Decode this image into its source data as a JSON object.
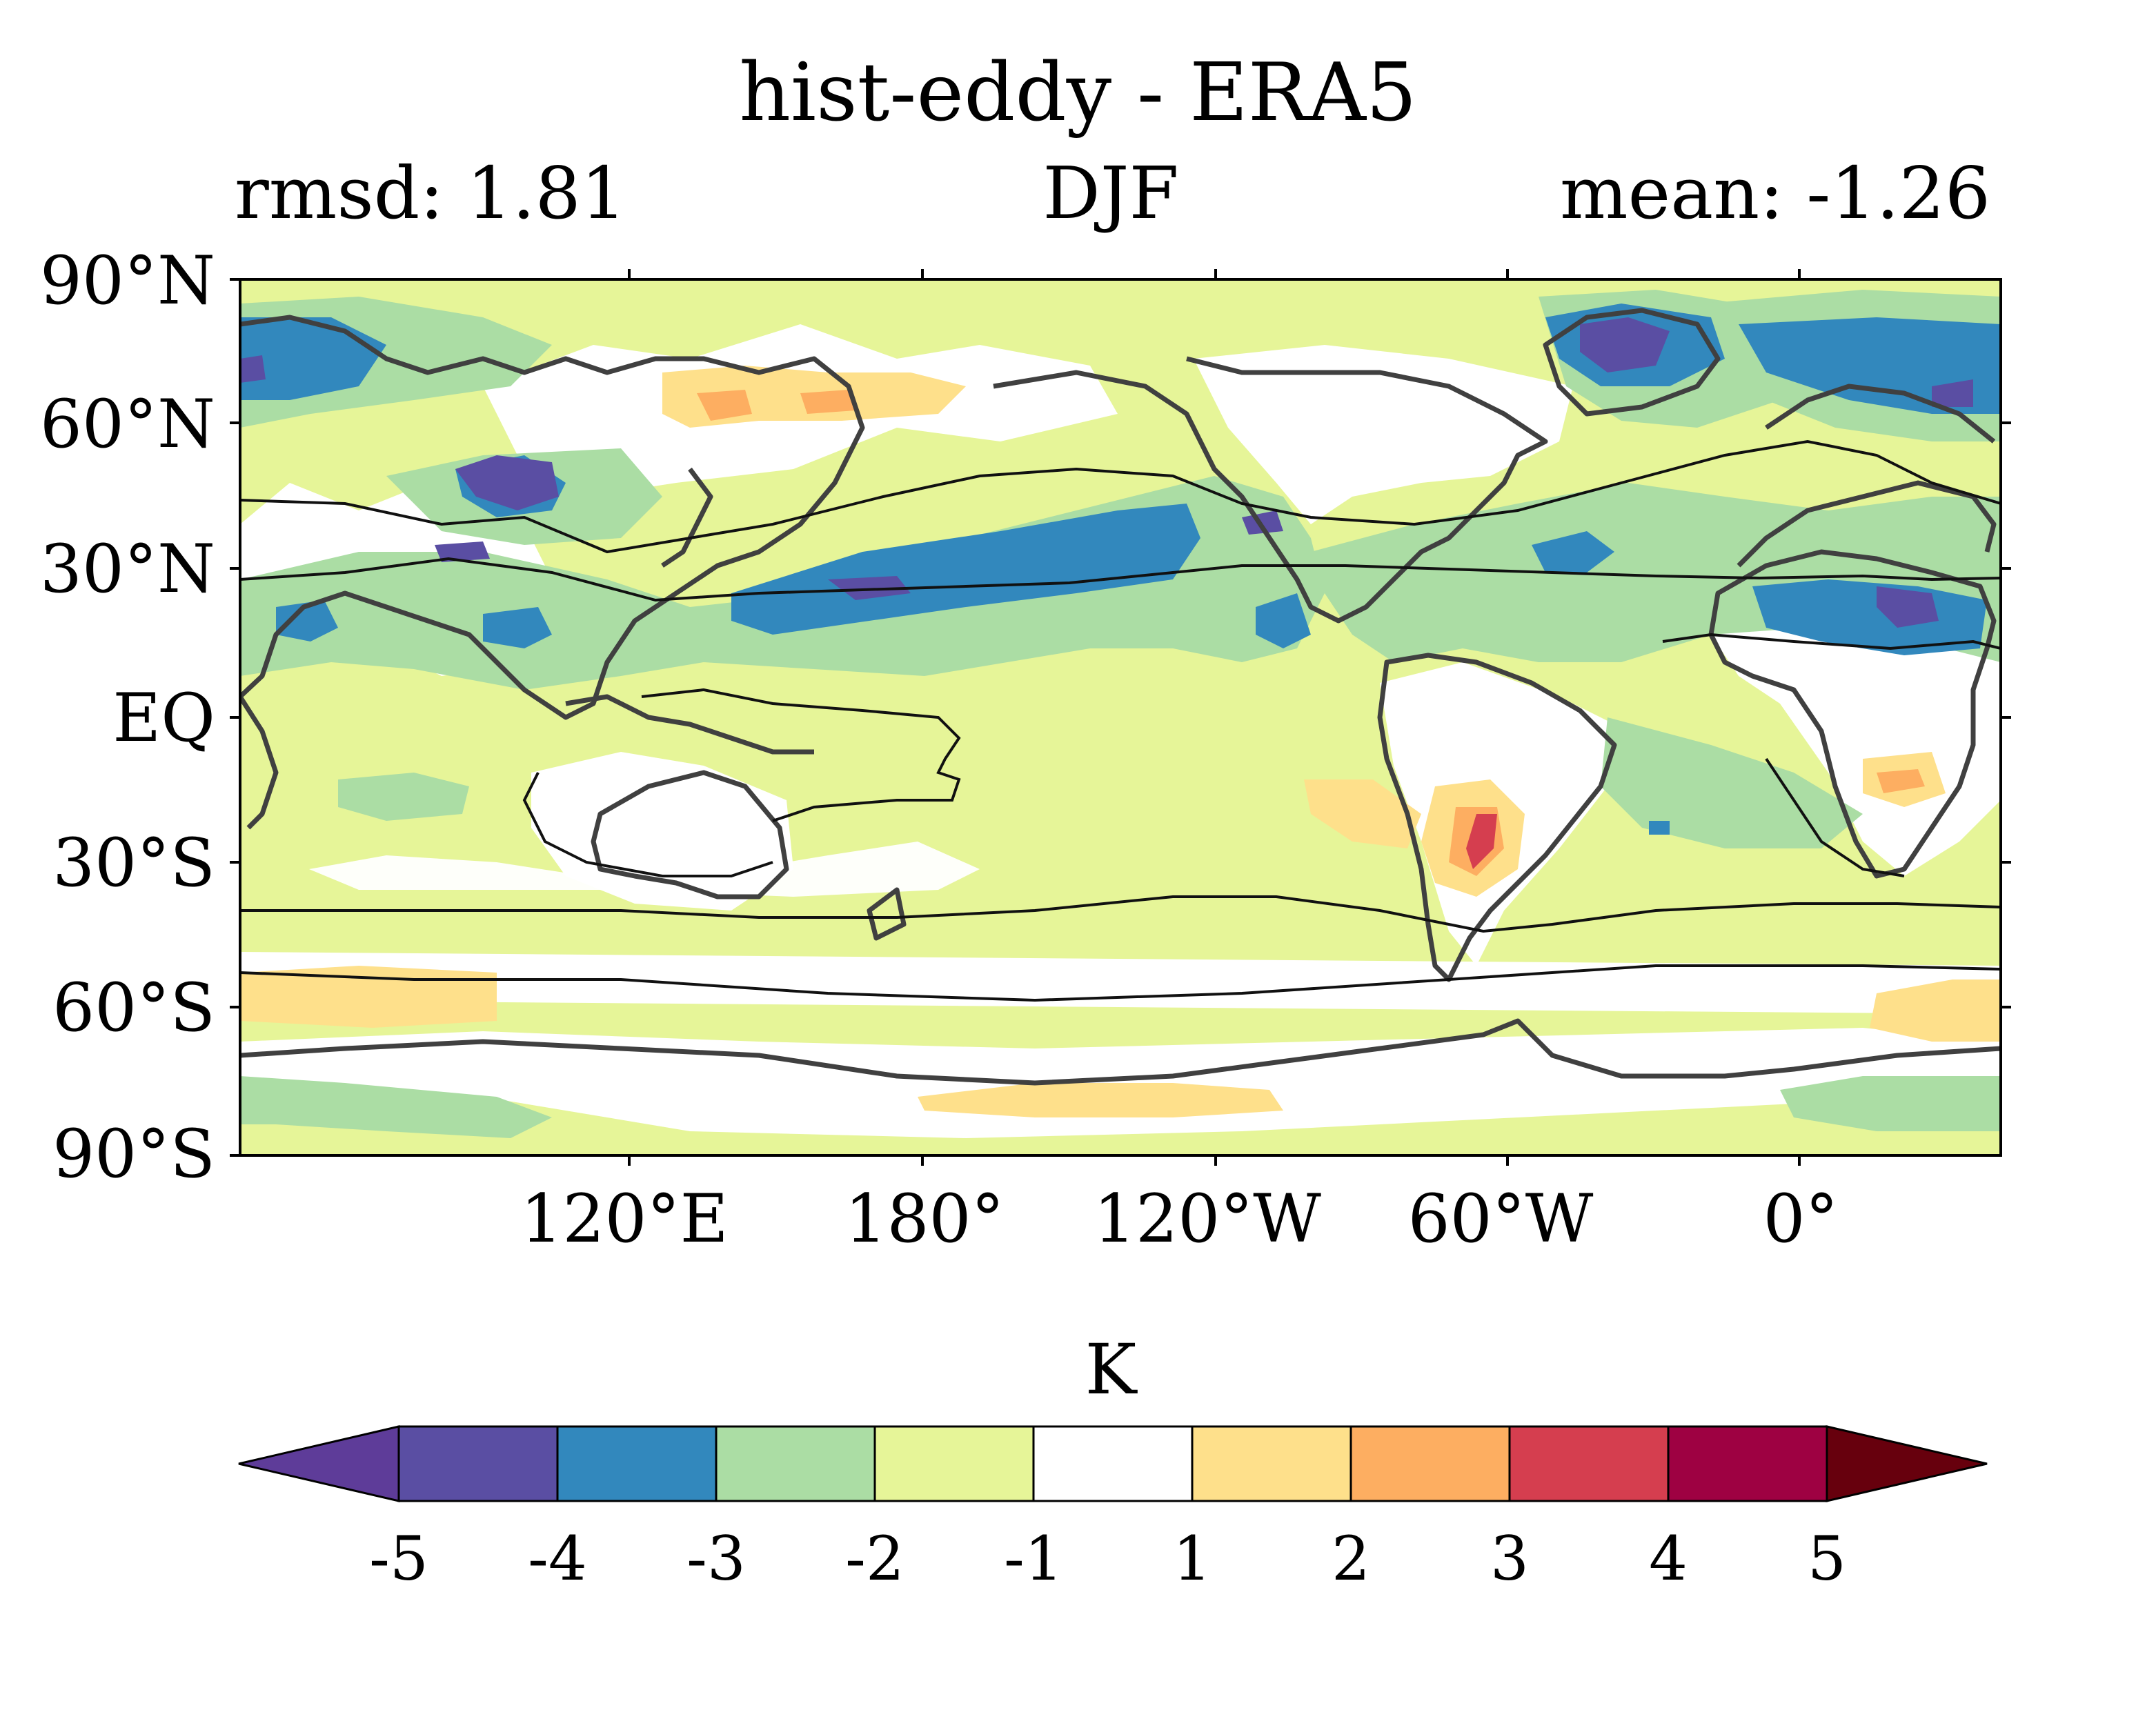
{
  "header": {
    "title": "hist-eddy - ERA5",
    "left_label": "rmsd: 1.81",
    "center_label": "DJF",
    "right_label": "mean: -1.26"
  },
  "map": {
    "lat_labels": [
      "90°N",
      "60°N",
      "30°N",
      "EQ",
      "30°S",
      "60°S",
      "90°S"
    ],
    "lon_labels": [
      "120°E",
      "180°",
      "120°W",
      "60°W",
      "0°"
    ],
    "region_labels": []
  },
  "colorbar": {
    "unit": "K",
    "levels": [
      "-5",
      "-4",
      "-3",
      "-2",
      "-1",
      "1",
      "2",
      "3",
      "4",
      "5"
    ],
    "colors": [
      "#5e3c99",
      "#5a4ea3",
      "#3288bd",
      "#abdda4",
      "#e6f598",
      "#ffffff",
      "#fee08b",
      "#fdae61",
      "#d53e4f",
      "#9e0142",
      "#67000d"
    ]
  }
}
